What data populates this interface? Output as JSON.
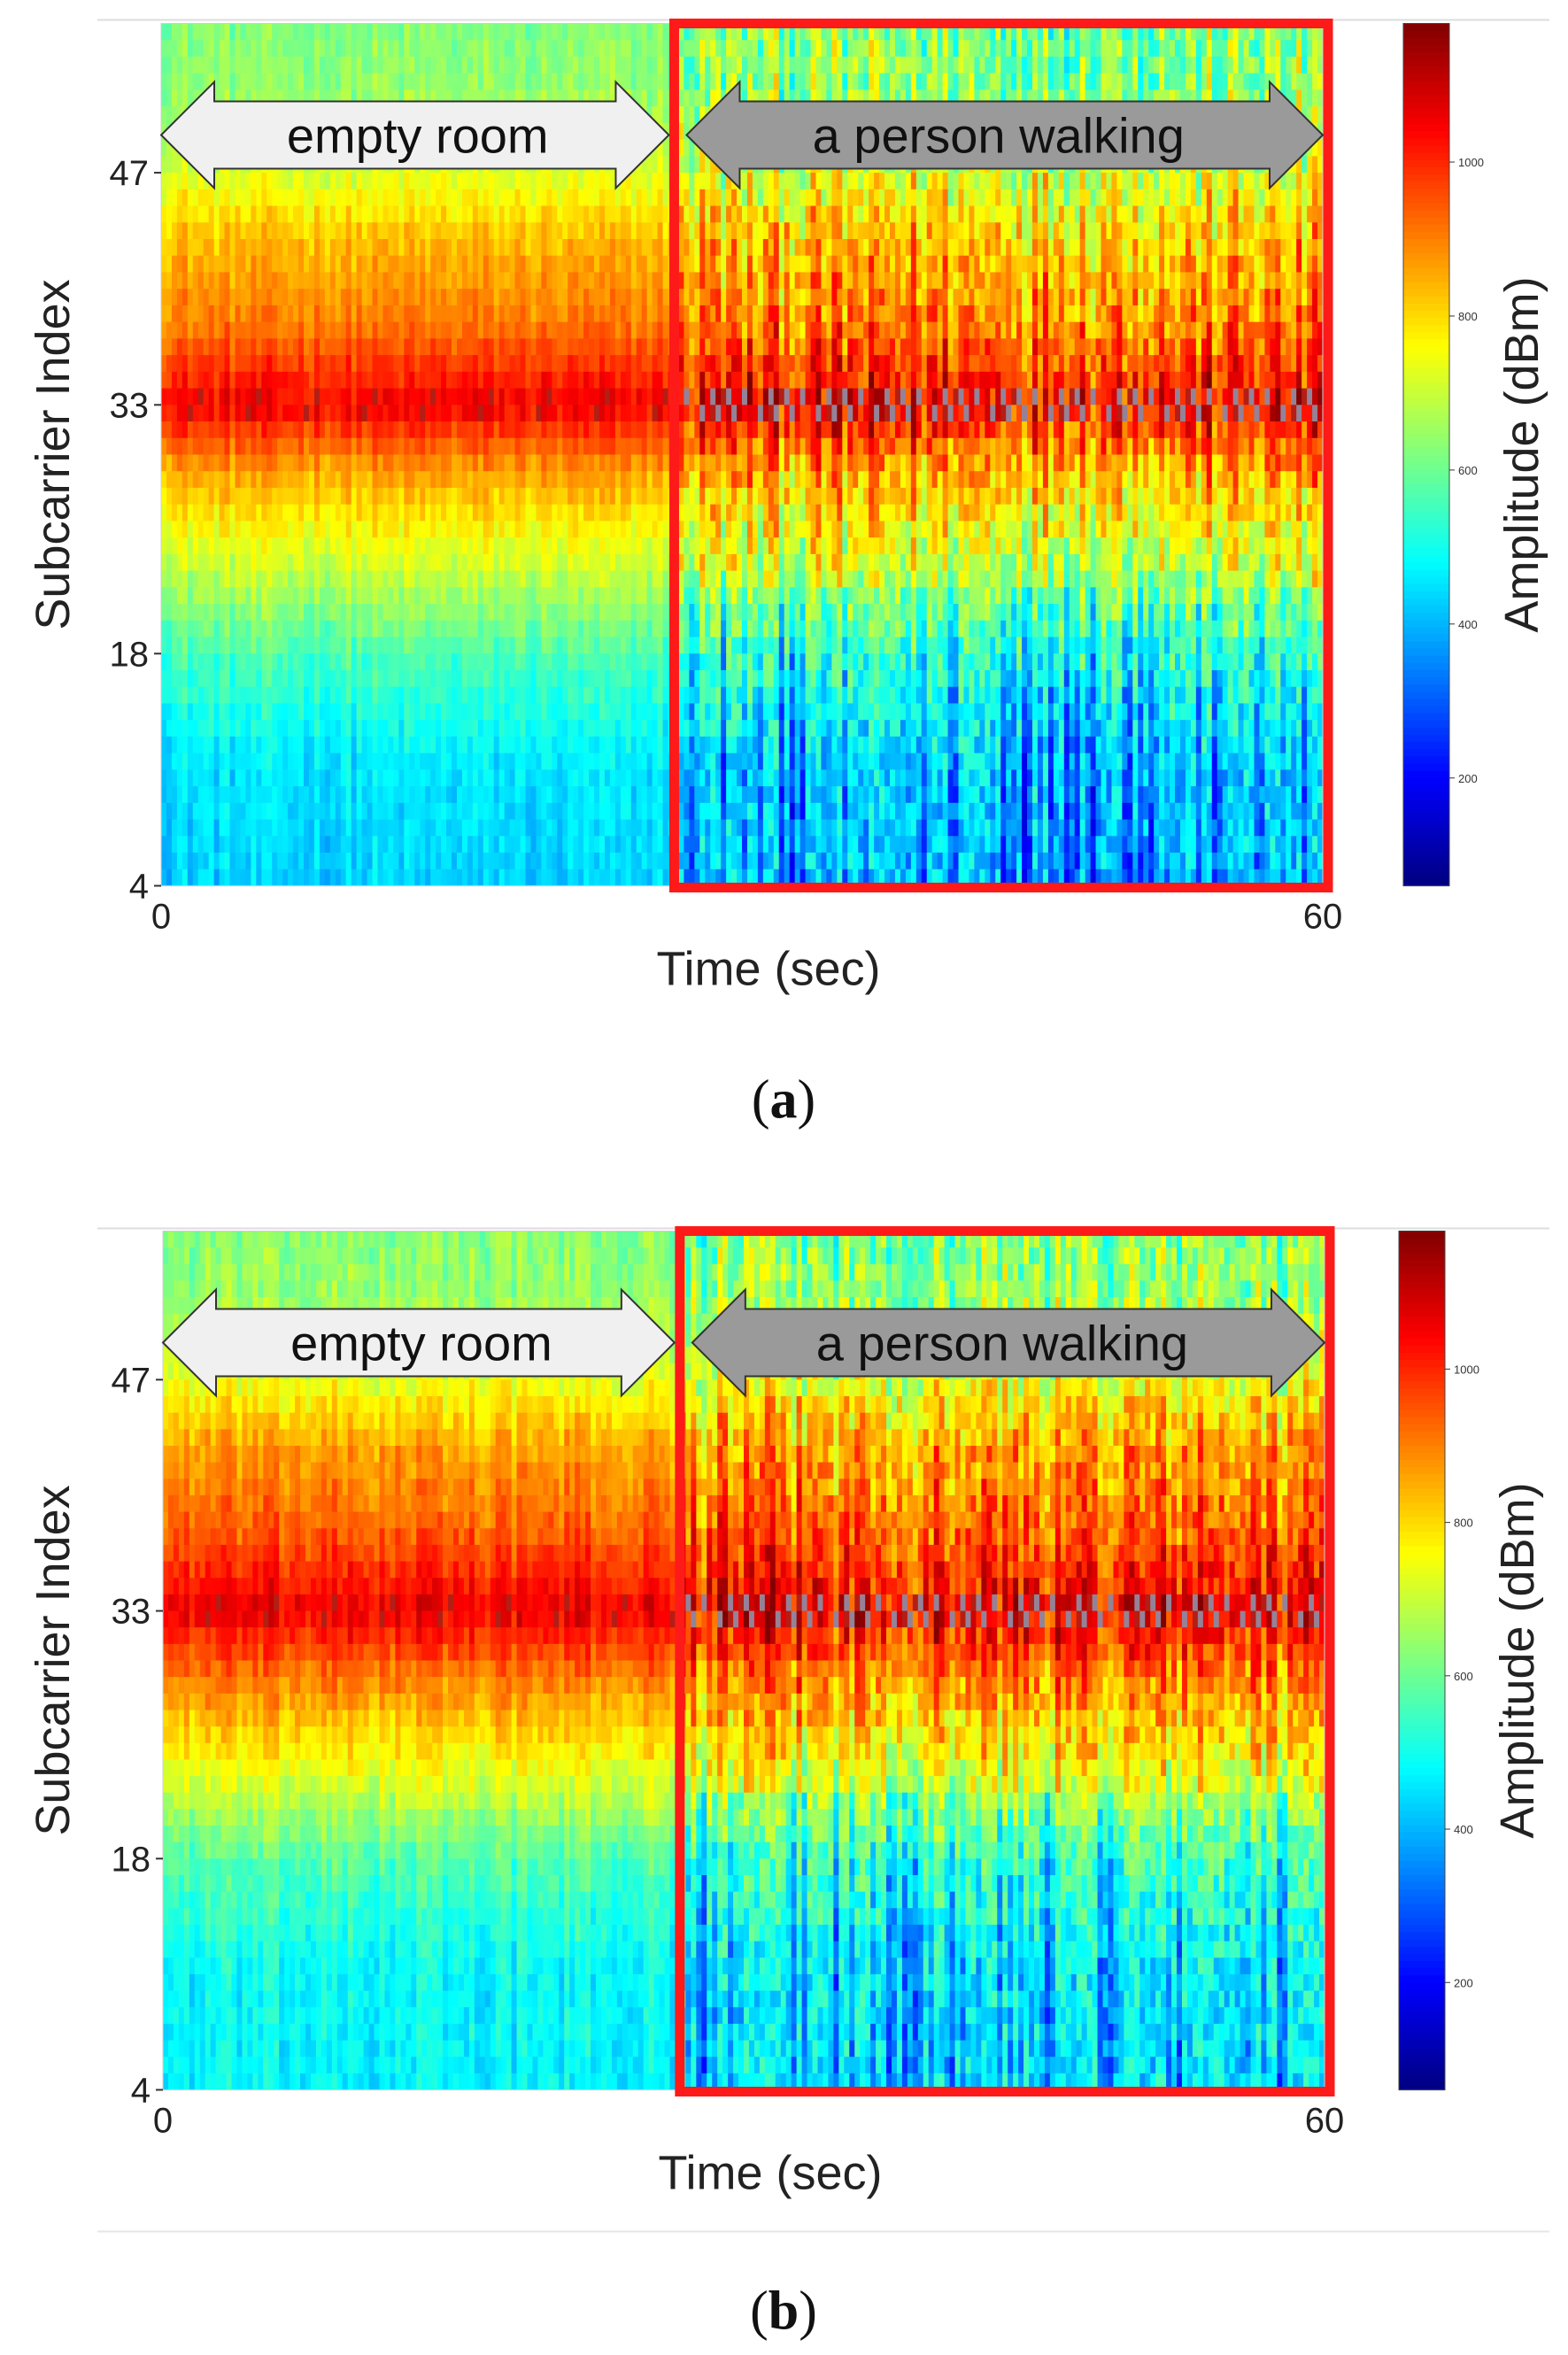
{
  "colors": {
    "highlight_box": "#ff1a1a",
    "arrow_empty_fill": "#f0f0f0",
    "arrow_walking_fill": "#9a9a9a",
    "arrow_stroke": "#333333",
    "colormap": "jet"
  },
  "panels": [
    {
      "caption_label": "a",
      "annotations": {
        "left": "empty room",
        "right": "a person walking"
      },
      "walking_start_sec": 26.5
    },
    {
      "caption_label": "b",
      "annotations": {
        "left": "empty room",
        "right": "a person walking"
      },
      "walking_start_sec": 26.7
    }
  ],
  "chart_data": [
    {
      "type": "heatmap",
      "title": "",
      "xlabel": "Time (sec)",
      "ylabel": "Subcarrier Index",
      "colorbar_label": "Amplitude (dBm)",
      "xlim": [
        0,
        60
      ],
      "ylim": [
        4,
        56
      ],
      "x_ticks": [
        0,
        60
      ],
      "y_ticks": [
        4,
        18,
        33,
        47
      ],
      "color_range": [
        60,
        1180
      ],
      "colorbar_ticks": [
        200,
        400,
        600,
        800,
        1000
      ],
      "subcarrier_profile": [
        {
          "subcarrier": 4,
          "amplitude": 430
        },
        {
          "subcarrier": 11,
          "amplitude": 450
        },
        {
          "subcarrier": 18,
          "amplitude": 560
        },
        {
          "subcarrier": 24,
          "amplitude": 720
        },
        {
          "subcarrier": 29,
          "amplitude": 860
        },
        {
          "subcarrier": 33,
          "amplitude": 1050
        },
        {
          "subcarrier": 38,
          "amplitude": 900
        },
        {
          "subcarrier": 43,
          "amplitude": 830
        },
        {
          "subcarrier": 47,
          "amplitude": 720
        },
        {
          "subcarrier": 52,
          "amplitude": 640
        },
        {
          "subcarrier": 56,
          "amplitude": 620
        }
      ],
      "segments": [
        {
          "label": "empty room",
          "time_range": [
            0,
            26.5
          ],
          "variability": 60
        },
        {
          "label": "a person walking",
          "time_range": [
            26.5,
            60
          ],
          "variability": 180
        }
      ]
    },
    {
      "type": "heatmap",
      "title": "",
      "xlabel": "Time (sec)",
      "ylabel": "Subcarrier Index",
      "colorbar_label": "Amplitude (dBm)",
      "xlim": [
        0,
        60
      ],
      "ylim": [
        4,
        56
      ],
      "x_ticks": [
        0,
        60
      ],
      "y_ticks": [
        4,
        18,
        33,
        47
      ],
      "color_range": [
        60,
        1180
      ],
      "colorbar_ticks": [
        200,
        400,
        600,
        800,
        1000
      ],
      "subcarrier_profile": [
        {
          "subcarrier": 4,
          "amplitude": 470
        },
        {
          "subcarrier": 11,
          "amplitude": 480
        },
        {
          "subcarrier": 18,
          "amplitude": 570
        },
        {
          "subcarrier": 24,
          "amplitude": 760
        },
        {
          "subcarrier": 29,
          "amplitude": 900
        },
        {
          "subcarrier": 33,
          "amplitude": 1060
        },
        {
          "subcarrier": 38,
          "amplitude": 930
        },
        {
          "subcarrier": 43,
          "amplitude": 860
        },
        {
          "subcarrier": 47,
          "amplitude": 730
        },
        {
          "subcarrier": 52,
          "amplitude": 640
        },
        {
          "subcarrier": 56,
          "amplitude": 630
        }
      ],
      "segments": [
        {
          "label": "empty room",
          "time_range": [
            0,
            26.7
          ],
          "variability": 70
        },
        {
          "label": "a person walking",
          "time_range": [
            26.7,
            60
          ],
          "variability": 170
        }
      ]
    }
  ]
}
